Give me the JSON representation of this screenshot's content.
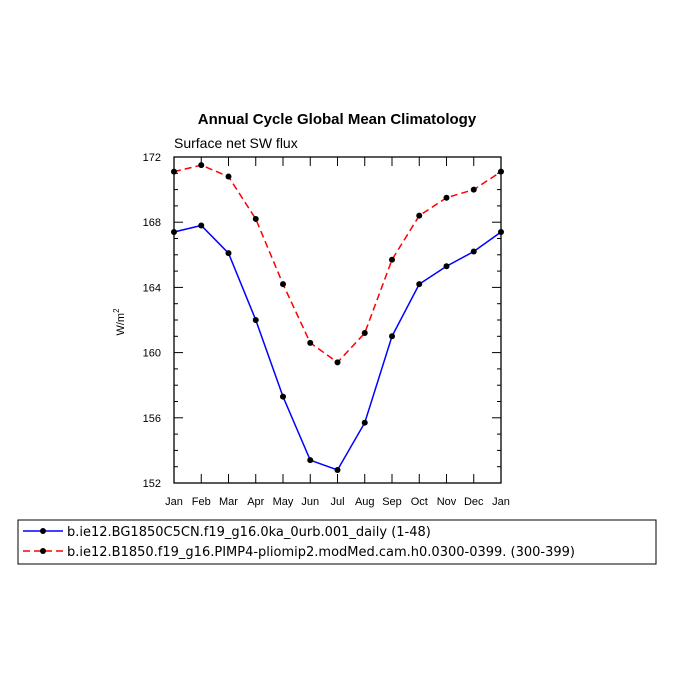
{
  "chart_data": {
    "type": "line",
    "title": "Annual Cycle Global Mean Climatology",
    "subtitle": "Surface net SW flux",
    "ylabel_main": "W/m",
    "ylabel_sup": "2",
    "categories": [
      "Jan",
      "Feb",
      "Mar",
      "Apr",
      "May",
      "Jun",
      "Jul",
      "Aug",
      "Sep",
      "Oct",
      "Nov",
      "Dec",
      "Jan"
    ],
    "ylim": [
      152,
      172
    ],
    "yticks": [
      152,
      156,
      160,
      164,
      168,
      172
    ],
    "series": [
      {
        "name": "b.ie12.BG1850C5CN.f19_g16.0ka_0urb.001_daily (1-48)",
        "color": "#0000ff",
        "dash": "solid",
        "values": [
          167.4,
          167.8,
          166.1,
          162.0,
          157.3,
          153.4,
          152.8,
          155.7,
          161.0,
          164.2,
          165.3,
          166.2,
          167.4
        ]
      },
      {
        "name": "b.ie12.B1850.f19_g16.PIMP4-pliomip2.modMed.cam.h0.0300-0399. (300-399)",
        "color": "#ff0000",
        "dash": "dashed",
        "values": [
          171.1,
          171.5,
          170.8,
          168.2,
          164.2,
          160.6,
          159.4,
          161.2,
          165.7,
          168.4,
          169.5,
          170.0,
          171.1
        ]
      }
    ],
    "legend_placement": "bottom",
    "marker_color": "#000000"
  }
}
